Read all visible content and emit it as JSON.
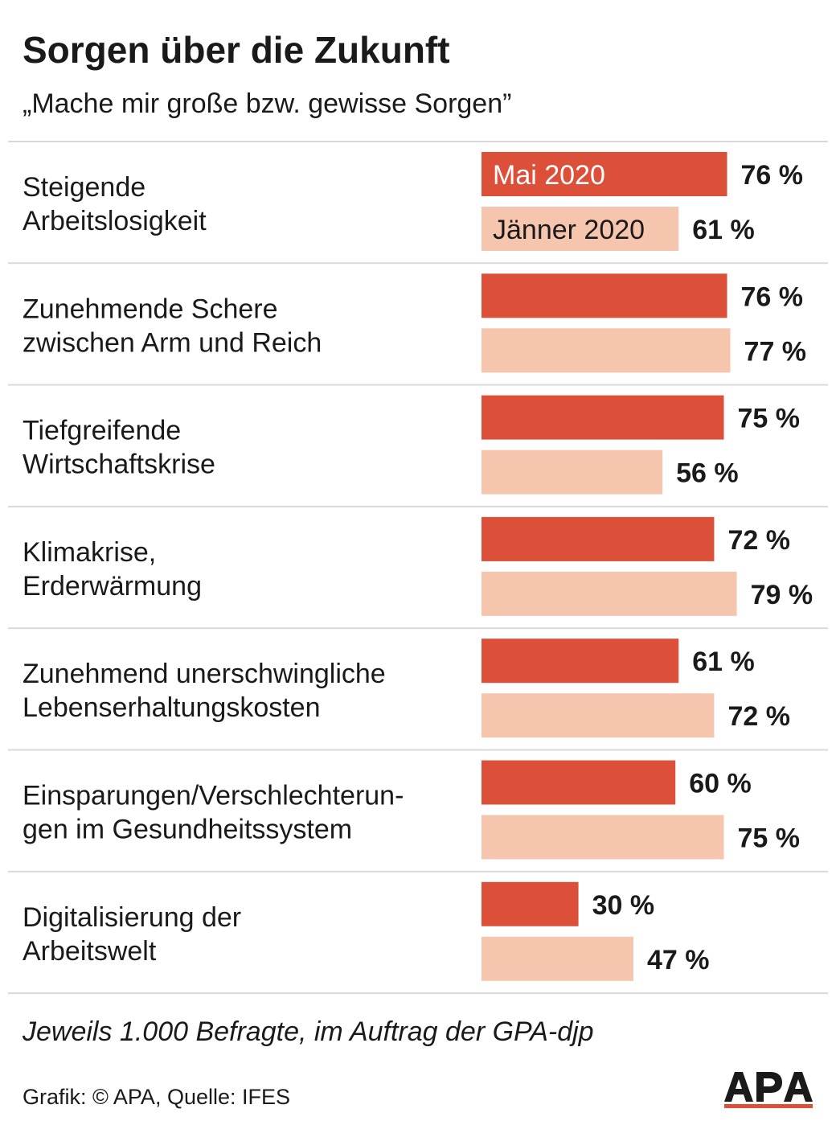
{
  "chart_data": {
    "type": "bar",
    "orientation": "horizontal",
    "title": "Sorgen über die Zukunft",
    "subtitle": "„Mache mir große bzw. gewisse Sorgen”",
    "categories": [
      [
        "Steigende",
        "Arbeitslosigkeit"
      ],
      [
        "Zunehmende Schere",
        "zwischen Arm und Reich"
      ],
      [
        "Tiefgreifende",
        "Wirtschaftskrise"
      ],
      [
        "Klimakrise,",
        "Erderwärmung"
      ],
      [
        "Zunehmend unerschwingliche",
        "Lebenserhaltungskosten"
      ],
      [
        "Einsparungen/Verschlechterun-",
        "gen im Gesundheitssystem"
      ],
      [
        "Digitalisierung der",
        "Arbeitswelt"
      ]
    ],
    "series": [
      {
        "name": "Mai 2020",
        "color": "#dc4f38",
        "label_color": "#ffffff",
        "values": [
          76,
          76,
          75,
          72,
          61,
          60,
          30
        ]
      },
      {
        "name": "Jänner 2020",
        "color": "#f6c5ad",
        "label_color": "#1a1a1a",
        "values": [
          61,
          77,
          56,
          79,
          72,
          75,
          47
        ]
      }
    ],
    "value_suffix": " %",
    "legend": "inside first bars",
    "grid": false,
    "xlim": [
      0,
      100
    ]
  },
  "footnote": "Jeweils 1.000 Befragte, im Auftrag der GPA-djp",
  "credit": "Grafik: © APA, Quelle: IFES",
  "logo_text": "APA",
  "colors": {
    "separator": "#d9d9d9",
    "text": "#1a1a1a",
    "logo": "#1a1a1a",
    "logo_accent": "#dc4f38"
  }
}
